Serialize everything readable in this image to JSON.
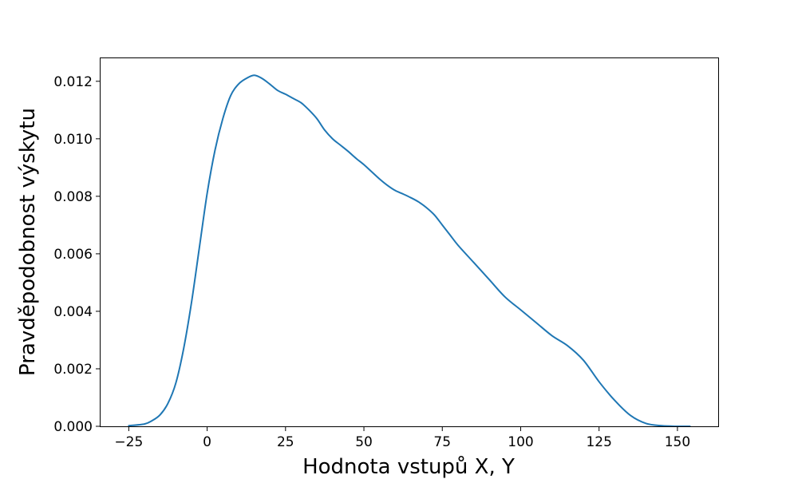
{
  "chart_data": {
    "type": "line",
    "title": "",
    "xlabel": "Hodnota vstupů X, Y",
    "ylabel": "Pravděpodobnost výskytu",
    "xlim": [
      -34,
      163
    ],
    "ylim": [
      0,
      0.0128
    ],
    "grid": false,
    "line_color": "#1f77b4",
    "x_ticks": [
      {
        "value": -25,
        "label": "−25"
      },
      {
        "value": 0,
        "label": "0"
      },
      {
        "value": 25,
        "label": "25"
      },
      {
        "value": 50,
        "label": "50"
      },
      {
        "value": 75,
        "label": "75"
      },
      {
        "value": 100,
        "label": "100"
      },
      {
        "value": 125,
        "label": "125"
      },
      {
        "value": 150,
        "label": "150"
      }
    ],
    "y_ticks": [
      {
        "value": 0.0,
        "label": "0.000"
      },
      {
        "value": 0.002,
        "label": "0.002"
      },
      {
        "value": 0.004,
        "label": "0.004"
      },
      {
        "value": 0.006,
        "label": "0.006"
      },
      {
        "value": 0.008,
        "label": "0.008"
      },
      {
        "value": 0.01,
        "label": "0.010"
      },
      {
        "value": 0.012,
        "label": "0.012"
      }
    ],
    "series": [
      {
        "x": [
          -25,
          -20,
          -17.5,
          -15,
          -12.5,
          -10,
          -7.5,
          -5,
          -2.5,
          0,
          2.5,
          5,
          7.5,
          10,
          12.5,
          15,
          17.5,
          20,
          22.5,
          25,
          27.5,
          30,
          32.5,
          35,
          37.5,
          40,
          42.5,
          45,
          47.5,
          50,
          52.5,
          55,
          57.5,
          60,
          62.5,
          65,
          67.5,
          70,
          72.5,
          75,
          77.5,
          80,
          85,
          90,
          95,
          100,
          105,
          110,
          115,
          120,
          125,
          130,
          135,
          140,
          145,
          150,
          154
        ],
        "y": [
          2e-05,
          8e-05,
          0.0002,
          0.0004,
          0.0008,
          0.0015,
          0.0027,
          0.0043,
          0.0062,
          0.0081,
          0.0096,
          0.0107,
          0.0115,
          0.0119,
          0.0121,
          0.01221,
          0.0121,
          0.0119,
          0.01168,
          0.01155,
          0.0114,
          0.01125,
          0.011,
          0.0107,
          0.0103,
          0.01,
          0.00978,
          0.00956,
          0.00932,
          0.0091,
          0.00885,
          0.0086,
          0.00838,
          0.0082,
          0.00808,
          0.00795,
          0.0078,
          0.0076,
          0.00735,
          0.007,
          0.00665,
          0.0063,
          0.0057,
          0.0051,
          0.0045,
          0.00405,
          0.0036,
          0.00315,
          0.0028,
          0.0023,
          0.00155,
          0.0009,
          0.00038,
          0.0001,
          2e-05,
          0.0,
          0.0
        ]
      }
    ]
  }
}
